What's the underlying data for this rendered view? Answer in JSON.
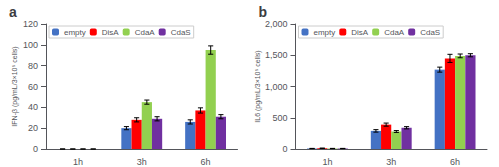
{
  "chart_data": [
    {
      "type": "bar",
      "title": "a",
      "ylabel": "IFN-β (pg/mL/3×10⁵ cells)",
      "categories": [
        "1h",
        "3h",
        "6h"
      ],
      "series": [
        {
          "name": "empty",
          "color": "#4472c4",
          "values": [
            0,
            20,
            26
          ],
          "errors": [
            0,
            1.5,
            2
          ]
        },
        {
          "name": "DisA",
          "color": "#ff0000",
          "values": [
            0,
            28,
            37
          ],
          "errors": [
            0,
            2,
            2.5
          ]
        },
        {
          "name": "CdaA",
          "color": "#92d050",
          "values": [
            0,
            45,
            95
          ],
          "errors": [
            0,
            2,
            4
          ]
        },
        {
          "name": "CdaS",
          "color": "#7030a0",
          "values": [
            0,
            29,
            31
          ],
          "errors": [
            0,
            2,
            2
          ]
        }
      ],
      "ylim": [
        0,
        120
      ],
      "yticks": [
        0,
        20,
        40,
        60,
        80,
        100,
        120
      ],
      "grid": false,
      "legend": "upper left"
    },
    {
      "type": "bar",
      "title": "b",
      "ylabel": "IL6 (pg/mL/3×10⁵ cells)",
      "categories": [
        "1h",
        "3h",
        "6h"
      ],
      "series": [
        {
          "name": "empty",
          "color": "#4472c4",
          "values": [
            8,
            290,
            1270
          ],
          "errors": [
            2,
            20,
            40
          ]
        },
        {
          "name": "DisA",
          "color": "#ff0000",
          "values": [
            12,
            390,
            1450
          ],
          "errors": [
            3,
            25,
            65
          ]
        },
        {
          "name": "CdaA",
          "color": "#92d050",
          "values": [
            8,
            280,
            1490
          ],
          "errors": [
            2,
            15,
            30
          ]
        },
        {
          "name": "CdaS",
          "color": "#7030a0",
          "values": [
            8,
            340,
            1500
          ],
          "errors": [
            2,
            18,
            25
          ]
        }
      ],
      "ylim": [
        0,
        2000
      ],
      "yticks": [
        0,
        500,
        1000,
        1500,
        2000
      ],
      "grid": false,
      "legend": "upper left"
    }
  ]
}
